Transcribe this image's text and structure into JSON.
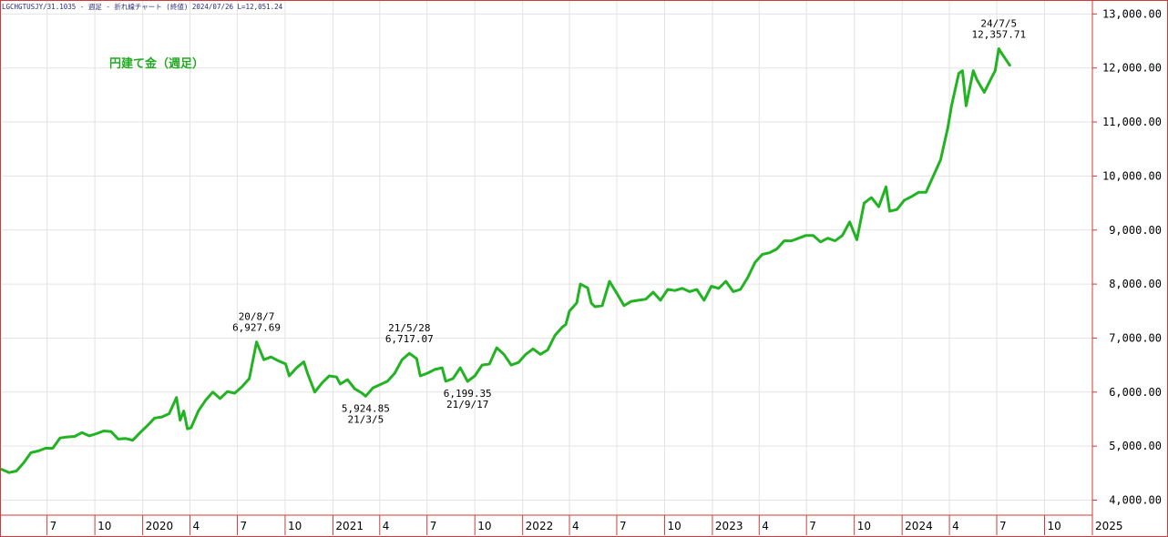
{
  "header": {
    "text": "LGCHGTUSJY/31.1035 - 週足 - 折れ線チャート (終値)  2024/07/26 L=12,051.24"
  },
  "colors": {
    "line": "#22b322",
    "grid": "#e3e3e3",
    "frame": "#d23a3a",
    "title": "#22aa22"
  },
  "chart_data": {
    "type": "line",
    "title": "円建て金（週足）",
    "xlabel": "",
    "ylabel": "",
    "x_range": [
      "2019-04-05",
      "2025-01-01"
    ],
    "ylim": [
      3900,
      13100
    ],
    "grid": true,
    "y_ticks": [
      4000,
      5000,
      6000,
      7000,
      8000,
      9000,
      10000,
      11000,
      12000,
      13000
    ],
    "y_tick_labels": [
      "4,000.00",
      "5,000.00",
      "6,000.00",
      "7,000.00",
      "8,000.00",
      "9,000.00",
      "10,000.00",
      "11,000.00",
      "12,000.00",
      "13,000.00"
    ],
    "x_ticks": [
      {
        "label": "7",
        "date": "2019-07-01"
      },
      {
        "label": "10",
        "date": "2019-10-01"
      },
      {
        "label": "2020",
        "date": "2020-01-01"
      },
      {
        "label": "4",
        "date": "2020-04-01"
      },
      {
        "label": "7",
        "date": "2020-07-01"
      },
      {
        "label": "10",
        "date": "2020-10-01"
      },
      {
        "label": "2021",
        "date": "2021-01-01"
      },
      {
        "label": "4",
        "date": "2021-04-01"
      },
      {
        "label": "7",
        "date": "2021-07-01"
      },
      {
        "label": "10",
        "date": "2021-10-01"
      },
      {
        "label": "2022",
        "date": "2022-01-01"
      },
      {
        "label": "4",
        "date": "2022-04-01"
      },
      {
        "label": "7",
        "date": "2022-07-01"
      },
      {
        "label": "10",
        "date": "2022-10-01"
      },
      {
        "label": "2023",
        "date": "2023-01-01"
      },
      {
        "label": "4",
        "date": "2023-04-01"
      },
      {
        "label": "7",
        "date": "2023-07-01"
      },
      {
        "label": "10",
        "date": "2023-10-01"
      },
      {
        "label": "2024",
        "date": "2024-01-01"
      },
      {
        "label": "4",
        "date": "2024-04-01"
      },
      {
        "label": "7",
        "date": "2024-07-01"
      },
      {
        "label": "10",
        "date": "2024-10-01"
      },
      {
        "label": "2025",
        "date": "2025-01-01"
      }
    ],
    "series": [
      {
        "points": [
          [
            "2019-04-05",
            4570
          ],
          [
            "2019-04-19",
            4510
          ],
          [
            "2019-05-03",
            4540
          ],
          [
            "2019-05-17",
            4690
          ],
          [
            "2019-05-31",
            4880
          ],
          [
            "2019-06-14",
            4910
          ],
          [
            "2019-06-28",
            4960
          ],
          [
            "2019-07-12",
            4960
          ],
          [
            "2019-07-26",
            5150
          ],
          [
            "2019-08-09",
            5170
          ],
          [
            "2019-08-23",
            5180
          ],
          [
            "2019-09-06",
            5250
          ],
          [
            "2019-09-20",
            5190
          ],
          [
            "2019-10-04",
            5230
          ],
          [
            "2019-10-18",
            5280
          ],
          [
            "2019-11-01",
            5270
          ],
          [
            "2019-11-15",
            5130
          ],
          [
            "2019-11-29",
            5140
          ],
          [
            "2019-12-13",
            5110
          ],
          [
            "2019-12-27",
            5250
          ],
          [
            "2020-01-10",
            5380
          ],
          [
            "2020-01-24",
            5520
          ],
          [
            "2020-02-07",
            5540
          ],
          [
            "2020-02-21",
            5600
          ],
          [
            "2020-03-06",
            5900
          ],
          [
            "2020-03-13",
            5480
          ],
          [
            "2020-03-20",
            5650
          ],
          [
            "2020-03-27",
            5320
          ],
          [
            "2020-04-03",
            5340
          ],
          [
            "2020-04-17",
            5650
          ],
          [
            "2020-05-01",
            5850
          ],
          [
            "2020-05-15",
            6000
          ],
          [
            "2020-05-29",
            5880
          ],
          [
            "2020-06-12",
            6010
          ],
          [
            "2020-06-26",
            5980
          ],
          [
            "2020-07-10",
            6100
          ],
          [
            "2020-07-24",
            6250
          ],
          [
            "2020-08-07",
            6928
          ],
          [
            "2020-08-21",
            6600
          ],
          [
            "2020-09-04",
            6650
          ],
          [
            "2020-09-18",
            6580
          ],
          [
            "2020-10-02",
            6520
          ],
          [
            "2020-10-09",
            6300
          ],
          [
            "2020-10-23",
            6450
          ],
          [
            "2020-11-06",
            6560
          ],
          [
            "2020-11-13",
            6350
          ],
          [
            "2020-11-27",
            6000
          ],
          [
            "2020-12-11",
            6170
          ],
          [
            "2020-12-25",
            6300
          ],
          [
            "2021-01-08",
            6280
          ],
          [
            "2021-01-15",
            6150
          ],
          [
            "2021-01-29",
            6230
          ],
          [
            "2021-02-12",
            6060
          ],
          [
            "2021-02-26",
            5980
          ],
          [
            "2021-03-05",
            5925
          ],
          [
            "2021-03-19",
            6080
          ],
          [
            "2021-04-02",
            6140
          ],
          [
            "2021-04-16",
            6200
          ],
          [
            "2021-04-30",
            6350
          ],
          [
            "2021-05-14",
            6600
          ],
          [
            "2021-05-28",
            6717
          ],
          [
            "2021-06-11",
            6620
          ],
          [
            "2021-06-18",
            6300
          ],
          [
            "2021-07-02",
            6350
          ],
          [
            "2021-07-16",
            6420
          ],
          [
            "2021-07-30",
            6450
          ],
          [
            "2021-08-06",
            6200
          ],
          [
            "2021-08-20",
            6250
          ],
          [
            "2021-09-03",
            6450
          ],
          [
            "2021-09-17",
            6199
          ],
          [
            "2021-10-01",
            6300
          ],
          [
            "2021-10-15",
            6500
          ],
          [
            "2021-10-29",
            6520
          ],
          [
            "2021-11-12",
            6820
          ],
          [
            "2021-11-26",
            6700
          ],
          [
            "2021-12-10",
            6500
          ],
          [
            "2021-12-24",
            6550
          ],
          [
            "2022-01-07",
            6700
          ],
          [
            "2022-01-21",
            6800
          ],
          [
            "2022-02-04",
            6700
          ],
          [
            "2022-02-18",
            6780
          ],
          [
            "2022-03-04",
            7050
          ],
          [
            "2022-03-18",
            7200
          ],
          [
            "2022-03-25",
            7250
          ],
          [
            "2022-04-01",
            7500
          ],
          [
            "2022-04-15",
            7650
          ],
          [
            "2022-04-22",
            8000
          ],
          [
            "2022-05-06",
            7930
          ],
          [
            "2022-05-13",
            7650
          ],
          [
            "2022-05-20",
            7580
          ],
          [
            "2022-06-03",
            7600
          ],
          [
            "2022-06-17",
            8050
          ],
          [
            "2022-07-01",
            7830
          ],
          [
            "2022-07-15",
            7600
          ],
          [
            "2022-07-29",
            7680
          ],
          [
            "2022-08-12",
            7700
          ],
          [
            "2022-08-26",
            7720
          ],
          [
            "2022-09-09",
            7850
          ],
          [
            "2022-09-23",
            7700
          ],
          [
            "2022-10-07",
            7900
          ],
          [
            "2022-10-21",
            7880
          ],
          [
            "2022-11-04",
            7920
          ],
          [
            "2022-11-18",
            7860
          ],
          [
            "2022-12-02",
            7900
          ],
          [
            "2022-12-16",
            7700
          ],
          [
            "2022-12-30",
            7960
          ],
          [
            "2023-01-13",
            7920
          ],
          [
            "2023-01-27",
            8050
          ],
          [
            "2023-02-10",
            7860
          ],
          [
            "2023-02-24",
            7900
          ],
          [
            "2023-03-10",
            8120
          ],
          [
            "2023-03-24",
            8400
          ],
          [
            "2023-04-07",
            8550
          ],
          [
            "2023-04-21",
            8580
          ],
          [
            "2023-05-05",
            8650
          ],
          [
            "2023-05-19",
            8800
          ],
          [
            "2023-06-02",
            8800
          ],
          [
            "2023-06-16",
            8850
          ],
          [
            "2023-06-30",
            8900
          ],
          [
            "2023-07-14",
            8900
          ],
          [
            "2023-07-28",
            8780
          ],
          [
            "2023-08-11",
            8850
          ],
          [
            "2023-08-25",
            8800
          ],
          [
            "2023-09-08",
            8900
          ],
          [
            "2023-09-22",
            9150
          ],
          [
            "2023-10-06",
            8820
          ],
          [
            "2023-10-20",
            9500
          ],
          [
            "2023-11-03",
            9600
          ],
          [
            "2023-11-17",
            9430
          ],
          [
            "2023-12-01",
            9800
          ],
          [
            "2023-12-08",
            9350
          ],
          [
            "2023-12-22",
            9380
          ],
          [
            "2024-01-05",
            9550
          ],
          [
            "2024-01-19",
            9620
          ],
          [
            "2024-02-02",
            9700
          ],
          [
            "2024-02-16",
            9700
          ],
          [
            "2024-03-01",
            10000
          ],
          [
            "2024-03-15",
            10300
          ],
          [
            "2024-03-29",
            10900
          ],
          [
            "2024-04-05",
            11300
          ],
          [
            "2024-04-19",
            11900
          ],
          [
            "2024-04-26",
            11950
          ],
          [
            "2024-05-03",
            11300
          ],
          [
            "2024-05-17",
            11950
          ],
          [
            "2024-05-24",
            11780
          ],
          [
            "2024-06-07",
            11550
          ],
          [
            "2024-06-21",
            11820
          ],
          [
            "2024-06-28",
            11950
          ],
          [
            "2024-07-05",
            12358
          ],
          [
            "2024-07-12",
            12250
          ],
          [
            "2024-07-26",
            12051
          ]
        ]
      }
    ],
    "annotations": [
      {
        "date": "2020-08-07",
        "value": 6928,
        "lines": [
          "20/8/7",
          "6,927.69"
        ],
        "pos": "above"
      },
      {
        "date": "2021-03-05",
        "value": 5925,
        "lines": [
          "5,924.85",
          "21/3/5"
        ],
        "pos": "below"
      },
      {
        "date": "2021-05-28",
        "value": 6717,
        "lines": [
          "21/5/28",
          "6,717.07"
        ],
        "pos": "above"
      },
      {
        "date": "2021-09-17",
        "value": 6199,
        "lines": [
          "6,199.35",
          "21/9/17"
        ],
        "pos": "below"
      },
      {
        "date": "2024-07-05",
        "value": 12358,
        "lines": [
          "24/7/5",
          "12,357.71"
        ],
        "pos": "above"
      }
    ]
  }
}
